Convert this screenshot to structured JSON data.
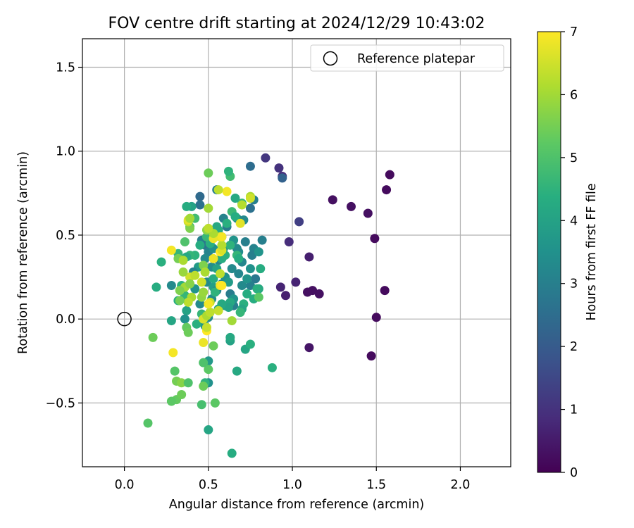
{
  "chart_data": {
    "type": "scatter",
    "title": "FOV centre drift starting at 2024/12/29 10:43:02",
    "xlabel": "Angular distance from reference (arcmin)",
    "ylabel": "Rotation from reference (arcmin)",
    "xlim": [
      -0.25,
      2.3
    ],
    "ylim": [
      -0.88,
      1.67
    ],
    "xticks": [
      0.0,
      0.5,
      1.0,
      1.5,
      2.0
    ],
    "xtick_labels": [
      "0.0",
      "0.5",
      "1.0",
      "1.5",
      "2.0"
    ],
    "yticks": [
      -0.5,
      0.0,
      0.5,
      1.0,
      1.5
    ],
    "ytick_labels": [
      "−0.5",
      "0.0",
      "0.5",
      "1.0",
      "1.5"
    ],
    "grid": true,
    "legend": {
      "position": "top-right",
      "entries": [
        "Reference platepar"
      ]
    },
    "reference_point": {
      "x": 0.0,
      "y": 0.0,
      "label": "Reference platepar",
      "marker": "open-circle"
    },
    "colorbar": {
      "label": "Hours from first FF file",
      "colormap": "viridis",
      "range": [
        0,
        7
      ],
      "ticks": [
        0,
        1,
        2,
        3,
        4,
        5,
        6,
        7
      ],
      "tick_labels": [
        "0",
        "1",
        "2",
        "3",
        "4",
        "5",
        "6",
        "7"
      ]
    },
    "points": [
      [
        1.58,
        0.86,
        0.2
      ],
      [
        1.56,
        0.77,
        0.2
      ],
      [
        1.49,
        0.48,
        0.2
      ],
      [
        1.45,
        0.63,
        0.3
      ],
      [
        1.35,
        0.67,
        0.3
      ],
      [
        1.24,
        0.71,
        0.3
      ],
      [
        1.55,
        0.17,
        0.2
      ],
      [
        1.5,
        0.01,
        0.2
      ],
      [
        1.47,
        -0.22,
        0.2
      ],
      [
        1.16,
        0.15,
        0.3
      ],
      [
        1.12,
        0.17,
        0.3
      ],
      [
        1.09,
        0.16,
        0.3
      ],
      [
        1.1,
        -0.17,
        0.4
      ],
      [
        1.1,
        0.37,
        0.6
      ],
      [
        1.02,
        0.22,
        0.7
      ],
      [
        0.96,
        0.14,
        0.6
      ],
      [
        0.93,
        0.19,
        0.7
      ],
      [
        0.98,
        0.46,
        0.9
      ],
      [
        1.04,
        0.58,
        1.3
      ],
      [
        0.94,
        0.85,
        0.9
      ],
      [
        0.92,
        0.9,
        1.0
      ],
      [
        0.84,
        0.96,
        1.1
      ],
      [
        0.94,
        0.84,
        2.2
      ],
      [
        0.75,
        0.91,
        2.5
      ],
      [
        0.82,
        0.47,
        3.0
      ],
      [
        0.77,
        0.42,
        3.1
      ],
      [
        0.76,
        0.38,
        3.0
      ],
      [
        0.78,
        0.24,
        2.8
      ],
      [
        0.75,
        0.2,
        3.0
      ],
      [
        0.75,
        0.66,
        2.6
      ],
      [
        0.77,
        0.71,
        3.0
      ],
      [
        0.71,
        0.59,
        3.3
      ],
      [
        0.67,
        0.6,
        3.2
      ],
      [
        0.61,
        0.55,
        2.9
      ],
      [
        0.59,
        0.6,
        3.1
      ],
      [
        0.55,
        0.77,
        3.0
      ],
      [
        0.45,
        0.73,
        2.4
      ],
      [
        0.45,
        0.68,
        2.6
      ],
      [
        0.46,
        0.47,
        3.0
      ],
      [
        0.48,
        0.44,
        2.7
      ],
      [
        0.5,
        0.4,
        3.1
      ],
      [
        0.53,
        0.42,
        3.5
      ],
      [
        0.59,
        0.42,
        3.6
      ],
      [
        0.56,
        0.35,
        3.2
      ],
      [
        0.52,
        0.31,
        3.4
      ],
      [
        0.48,
        0.36,
        3.3
      ],
      [
        0.44,
        0.31,
        3.8
      ],
      [
        0.41,
        0.28,
        3.1
      ],
      [
        0.42,
        0.18,
        3.6
      ],
      [
        0.49,
        0.22,
        3.3
      ],
      [
        0.53,
        0.19,
        3.9
      ],
      [
        0.55,
        0.17,
        3.2
      ],
      [
        0.58,
        0.21,
        3.1
      ],
      [
        0.6,
        0.25,
        3.5
      ],
      [
        0.62,
        0.22,
        3.8
      ],
      [
        0.63,
        0.15,
        2.9
      ],
      [
        0.65,
        0.08,
        3.0
      ],
      [
        0.65,
        0.12,
        3.6
      ],
      [
        0.6,
        0.08,
        3.9
      ],
      [
        0.56,
        0.06,
        4.1
      ],
      [
        0.51,
        0.04,
        3.5
      ],
      [
        0.5,
        0.01,
        3.3
      ],
      [
        0.48,
        -0.04,
        3.6
      ],
      [
        0.52,
        0.12,
        3.4
      ],
      [
        0.45,
        0.09,
        3.3
      ],
      [
        0.7,
        0.34,
        3.2
      ],
      [
        0.68,
        0.4,
        3.4
      ],
      [
        0.72,
        0.46,
        3.0
      ],
      [
        0.67,
        0.42,
        3.3
      ],
      [
        0.65,
        0.47,
        3.6
      ],
      [
        0.64,
        0.3,
        3.3
      ],
      [
        0.68,
        0.27,
        3.2
      ],
      [
        0.7,
        0.2,
        3.3
      ],
      [
        0.73,
        0.24,
        3.6
      ],
      [
        0.75,
        0.3,
        3.5
      ],
      [
        0.8,
        0.4,
        3.6
      ],
      [
        0.81,
        0.3,
        4.3
      ],
      [
        0.8,
        0.18,
        4.2
      ],
      [
        0.79,
        0.18,
        4.4
      ],
      [
        0.77,
        0.12,
        4.3
      ],
      [
        0.73,
        0.15,
        4.3
      ],
      [
        0.71,
        0.09,
        4.4
      ],
      [
        0.7,
        0.06,
        4.1
      ],
      [
        0.69,
        0.04,
        4.6
      ],
      [
        0.63,
        0.1,
        4.2
      ],
      [
        0.62,
        0.07,
        4.0
      ],
      [
        0.58,
        0.09,
        4.2
      ],
      [
        0.54,
        0.16,
        4.5
      ],
      [
        0.53,
        0.24,
        4.3
      ],
      [
        0.55,
        0.3,
        4.0
      ],
      [
        0.58,
        0.36,
        4.3
      ],
      [
        0.6,
        0.38,
        4.4
      ],
      [
        0.63,
        0.44,
        4.5
      ],
      [
        0.67,
        0.38,
        4.6
      ],
      [
        0.68,
        0.36,
        4.3
      ],
      [
        0.66,
        0.72,
        4.2
      ],
      [
        0.7,
        0.69,
        4.6
      ],
      [
        0.63,
        0.85,
        4.8
      ],
      [
        0.62,
        0.88,
        4.5
      ],
      [
        0.64,
        0.64,
        4.7
      ],
      [
        0.66,
        0.61,
        4.3
      ],
      [
        0.61,
        0.57,
        4.4
      ],
      [
        0.56,
        0.53,
        4.3
      ],
      [
        0.55,
        0.55,
        4.2
      ],
      [
        0.58,
        0.49,
        4.6
      ],
      [
        0.51,
        0.45,
        4.4
      ],
      [
        0.49,
        0.49,
        4.7
      ],
      [
        0.45,
        0.44,
        4.3
      ],
      [
        0.42,
        0.38,
        4.5
      ],
      [
        0.39,
        0.38,
        4.6
      ],
      [
        0.37,
        0.37,
        4.2
      ],
      [
        0.4,
        0.67,
        4.0
      ],
      [
        0.37,
        0.67,
        4.3
      ],
      [
        0.42,
        0.6,
        4.8
      ],
      [
        0.39,
        0.55,
        4.9
      ],
      [
        0.36,
        0.46,
        5.0
      ],
      [
        0.32,
        0.39,
        4.6
      ],
      [
        0.32,
        0.36,
        5.5
      ],
      [
        0.22,
        0.34,
        4.4
      ],
      [
        0.19,
        0.19,
        4.3
      ],
      [
        0.28,
        0.2,
        3.3
      ],
      [
        0.34,
        0.2,
        4.4
      ],
      [
        0.36,
        0.14,
        4.6
      ],
      [
        0.37,
        0.05,
        4.0
      ],
      [
        0.36,
        0.0,
        3.5
      ],
      [
        0.32,
        0.11,
        4.3
      ],
      [
        0.28,
        -0.01,
        4.1
      ],
      [
        0.37,
        -0.05,
        5.3
      ],
      [
        0.38,
        -0.08,
        5.4
      ],
      [
        0.43,
        -0.03,
        4.4
      ],
      [
        0.46,
        0.03,
        4.6
      ],
      [
        0.5,
        -0.25,
        3.7
      ],
      [
        0.5,
        -0.38,
        3.5
      ],
      [
        0.48,
        -0.38,
        4.5
      ],
      [
        0.5,
        -0.3,
        5.2
      ],
      [
        0.47,
        -0.4,
        5.4
      ],
      [
        0.46,
        -0.51,
        4.9
      ],
      [
        0.54,
        -0.5,
        5.2
      ],
      [
        0.47,
        -0.26,
        5.0
      ],
      [
        0.53,
        -0.16,
        5.4
      ],
      [
        0.63,
        -0.13,
        4.0
      ],
      [
        0.63,
        -0.11,
        4.2
      ],
      [
        0.72,
        -0.18,
        4.1
      ],
      [
        0.75,
        -0.15,
        4.4
      ],
      [
        0.67,
        -0.31,
        4.2
      ],
      [
        0.88,
        -0.29,
        4.4
      ],
      [
        0.5,
        -0.66,
        4.1
      ],
      [
        0.64,
        -0.8,
        4.3
      ],
      [
        0.14,
        -0.62,
        5.1
      ],
      [
        0.17,
        -0.11,
        5.4
      ],
      [
        0.3,
        -0.31,
        5.1
      ],
      [
        0.31,
        -0.37,
        5.5
      ],
      [
        0.34,
        -0.38,
        5.7
      ],
      [
        0.38,
        -0.38,
        5.0
      ],
      [
        0.31,
        -0.48,
        5.3
      ],
      [
        0.28,
        -0.49,
        5.2
      ],
      [
        0.34,
        -0.45,
        5.4
      ],
      [
        0.29,
        -0.2,
        6.9
      ],
      [
        0.47,
        -0.14,
        6.8
      ],
      [
        0.49,
        -0.07,
        7.0
      ],
      [
        0.49,
        -0.05,
        6.4
      ],
      [
        0.47,
        0.0,
        6.6
      ],
      [
        0.49,
        0.02,
        6.1
      ],
      [
        0.51,
        0.04,
        6.3
      ],
      [
        0.56,
        0.05,
        6.4
      ],
      [
        0.64,
        -0.01,
        6.0
      ],
      [
        0.51,
        0.1,
        6.4
      ],
      [
        0.5,
        0.09,
        6.9
      ],
      [
        0.46,
        0.13,
        5.8
      ],
      [
        0.4,
        0.13,
        6.1
      ],
      [
        0.38,
        0.1,
        6.3
      ],
      [
        0.36,
        0.19,
        6.0
      ],
      [
        0.39,
        0.25,
        6.5
      ],
      [
        0.35,
        0.28,
        5.9
      ],
      [
        0.33,
        0.17,
        5.6
      ],
      [
        0.33,
        0.11,
        5.5
      ],
      [
        0.39,
        0.21,
        5.7
      ],
      [
        0.42,
        0.26,
        6.3
      ],
      [
        0.46,
        0.22,
        6.5
      ],
      [
        0.47,
        0.16,
        5.9
      ],
      [
        0.47,
        0.32,
        5.6
      ],
      [
        0.48,
        0.28,
        6.1
      ],
      [
        0.57,
        0.27,
        6.3
      ],
      [
        0.57,
        0.2,
        6.8
      ],
      [
        0.58,
        0.2,
        7.0
      ],
      [
        0.57,
        0.4,
        7.0
      ],
      [
        0.58,
        0.41,
        6.6
      ],
      [
        0.53,
        0.36,
        6.8
      ],
      [
        0.58,
        0.44,
        6.2
      ],
      [
        0.57,
        0.49,
        6.6
      ],
      [
        0.58,
        0.49,
        6.9
      ],
      [
        0.53,
        0.48,
        6.8
      ],
      [
        0.53,
        0.51,
        6.1
      ],
      [
        0.49,
        0.53,
        5.8
      ],
      [
        0.5,
        0.54,
        6.3
      ],
      [
        0.39,
        0.54,
        5.6
      ],
      [
        0.38,
        0.58,
        6.3
      ],
      [
        0.38,
        0.59,
        6.7
      ],
      [
        0.39,
        0.6,
        6.0
      ],
      [
        0.28,
        0.41,
        6.9
      ],
      [
        0.35,
        0.35,
        6.1
      ],
      [
        0.69,
        0.57,
        6.7
      ],
      [
        0.7,
        0.68,
        6.2
      ],
      [
        0.75,
        0.73,
        6.1
      ],
      [
        0.75,
        0.72,
        6.5
      ],
      [
        0.61,
        0.76,
        6.9
      ],
      [
        0.56,
        0.77,
        6.3
      ],
      [
        0.5,
        0.66,
        6.0
      ],
      [
        0.5,
        0.87,
        5.4
      ],
      [
        0.8,
        0.13,
        5.2
      ]
    ]
  }
}
